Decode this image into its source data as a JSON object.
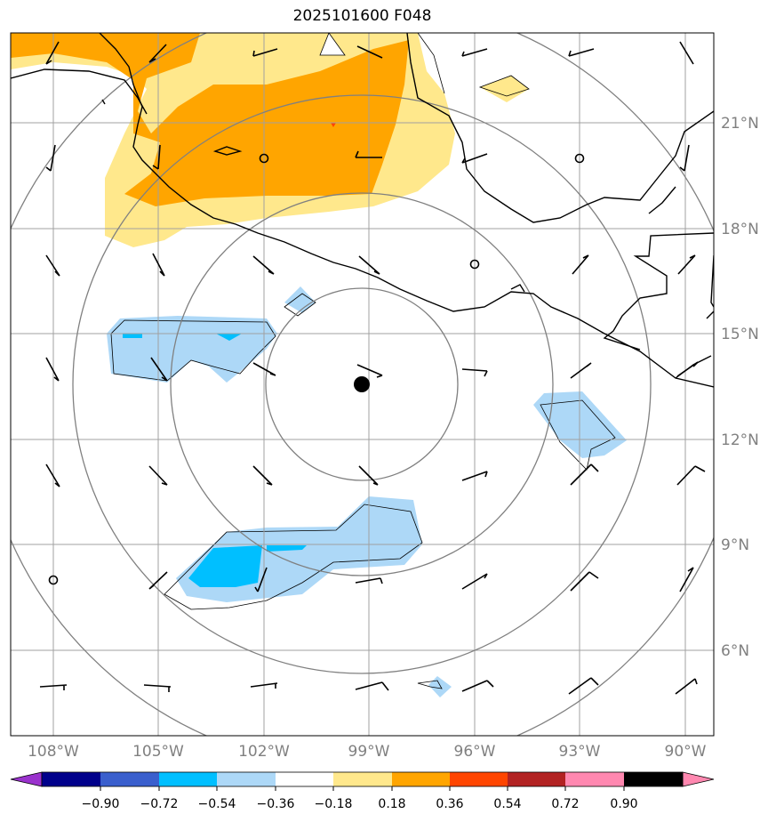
{
  "title": "2025101600 F048",
  "map": {
    "lat_labels": [
      {
        "lat": 21,
        "text": "21°N"
      },
      {
        "lat": 18,
        "text": "18°N"
      },
      {
        "lat": 15,
        "text": "15°N"
      },
      {
        "lat": 12,
        "text": "12°N"
      },
      {
        "lat": 9,
        "text": "9°N"
      },
      {
        "lat": 6,
        "text": "6°N"
      }
    ],
    "lon_labels": [
      {
        "lon": -108,
        "text": "108°W"
      },
      {
        "lon": -105,
        "text": "105°W"
      },
      {
        "lon": -102,
        "text": "102°W"
      },
      {
        "lon": -99,
        "text": "99°W"
      },
      {
        "lon": -96,
        "text": "96°W"
      },
      {
        "lon": -93,
        "text": "93°W"
      },
      {
        "lon": -90,
        "text": "90°W"
      }
    ],
    "center_marker": {
      "lon": -99.2,
      "lat": 13.6
    },
    "colors": {
      "lightblue": "#add8f7",
      "blue": "#00bfff",
      "yellow": "#ffe88c",
      "orange": "#ffa500",
      "red": "#ff4500"
    }
  },
  "colorbar": {
    "labels": [
      "−0.90",
      "−0.72",
      "−0.54",
      "−0.36",
      "−0.18",
      "0.18",
      "0.36",
      "0.54",
      "0.72",
      "0.90"
    ],
    "colors": [
      "#9a32cd",
      "#00008b",
      "#3a5fcd",
      "#00bfff",
      "#add8f7",
      "#ffffff",
      "#ffe88c",
      "#ffa500",
      "#ff4500",
      "#b22222",
      "#ff88b0"
    ]
  }
}
